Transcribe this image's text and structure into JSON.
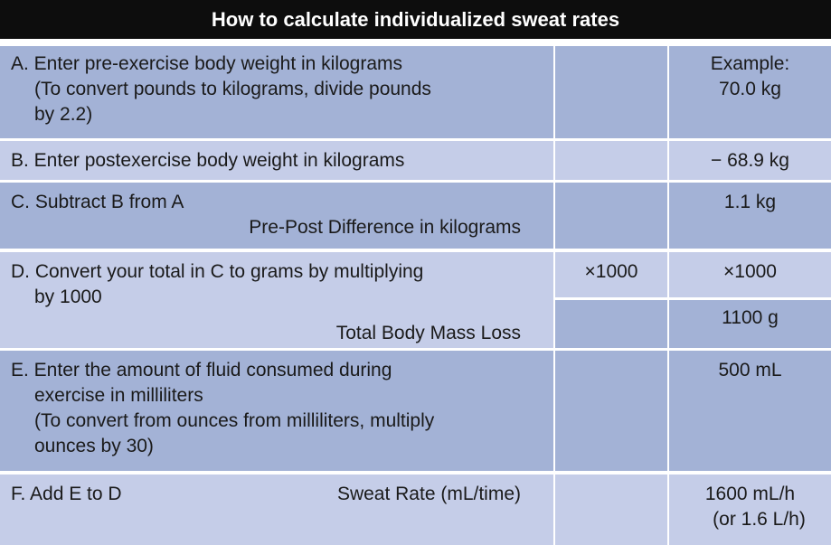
{
  "title": "How to calculate individualized sweat rates",
  "rows": {
    "a": {
      "line1": "A. Enter pre-exercise body weight in kilograms",
      "line2": "(To convert pounds to kilograms, divide pounds",
      "line3": "by 2.2)",
      "example_label": "Example:",
      "value": "70.0 kg"
    },
    "b": {
      "line1": "B. Enter postexercise body weight in kilograms",
      "value": "− 68.9 kg"
    },
    "c": {
      "line1": "C. Subtract B from A",
      "line2": "Pre-Post Difference in kilograms",
      "value": "1.1 kg"
    },
    "d": {
      "line1": "D. Convert your total in C to grams by multiplying",
      "line2": "by 1000",
      "line3": "Total Body Mass Loss",
      "multiplier": "×1000",
      "value_multiplier": "×1000",
      "value": "1100 g"
    },
    "e": {
      "line1": "E. Enter the amount of fluid consumed during",
      "line2": "exercise in milliliters",
      "line3": "(To convert from ounces from milliliters, multiply",
      "line4": "ounces by 30)",
      "value": "500 mL"
    },
    "f": {
      "line1": "F. Add E to D",
      "label": "Sweat Rate (mL/time)",
      "value1": "1600 mL/h",
      "value2": "(or 1.6 L/h)"
    }
  }
}
